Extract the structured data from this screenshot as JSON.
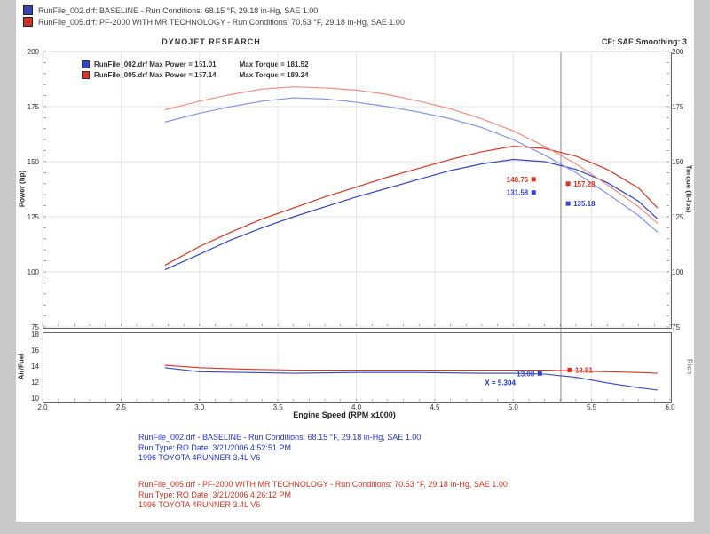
{
  "top_legend": [
    {
      "color": "#3a44b0",
      "label": "RunFile_002.drf: BASELINE  -  Run Conditions: 68.15 °F, 29.18 in-Hg, SAE 1.00"
    },
    {
      "color": "#cc3322",
      "label": "RunFile_005.drf: PF-2000 WITH MR TECHNOLOGY  -  Run Conditions: 70.53 °F, 29.18 in-Hg, SAE 1.00"
    }
  ],
  "chart_header": {
    "brand": "DYNOJET RESEARCH",
    "correction": "CF: SAE   Smoothing: 3"
  },
  "chart_data": {
    "type": "line",
    "title": "DYNOJET RESEARCH",
    "x": {
      "label": "Engine Speed (RPM x1000)",
      "min": 2.0,
      "max": 6.0,
      "ticks": [
        2.0,
        2.5,
        3.0,
        3.5,
        4.0,
        4.5,
        5.0,
        5.5,
        6.0
      ]
    },
    "main_plot": {
      "left_axis": {
        "label": "Power (hp)",
        "min": 75,
        "max": 200,
        "ticks": [
          200,
          175,
          150,
          125,
          100,
          75
        ]
      },
      "right_axis": {
        "label": "Torque (ft-lbs)",
        "min": 75,
        "max": 200,
        "ticks": [
          200,
          175,
          150,
          125,
          100,
          75
        ]
      },
      "grid": true,
      "cursor_x": 5.304,
      "legend": [
        {
          "color": "#3344cc",
          "power_text": "RunFile_002.drf Max Power = 151.01",
          "torque_text": "Max Torque = 181.52"
        },
        {
          "color": "#dd3322",
          "power_text": "RunFile_005.drf Max Power = 157.14",
          "torque_text": "Max Torque = 189.24"
        }
      ],
      "rpm": [
        2.78,
        3.0,
        3.2,
        3.4,
        3.6,
        3.8,
        4.0,
        4.2,
        4.4,
        4.6,
        4.8,
        5.0,
        5.2,
        5.4,
        5.6,
        5.8,
        5.92
      ],
      "series": [
        {
          "name": "baseline-power",
          "color": "#3344cc",
          "axis": "left",
          "values": [
            101,
            108,
            114.5,
            120,
            125,
            129.5,
            134,
            138,
            142,
            146,
            149,
            151,
            150,
            146.5,
            140.5,
            132,
            124
          ]
        },
        {
          "name": "pf2000-power",
          "color": "#dd3322",
          "axis": "left",
          "values": [
            103,
            111.5,
            118,
            124,
            129,
            134,
            138.5,
            143,
            147,
            151,
            154.5,
            157,
            156,
            152.5,
            146.5,
            138,
            129
          ]
        },
        {
          "name": "baseline-torque",
          "color": "#8494e2",
          "axis": "right",
          "values": [
            168,
            172,
            175,
            177.5,
            179,
            178.5,
            177,
            175,
            172.5,
            169.5,
            165.5,
            160,
            153,
            145,
            135.5,
            125.5,
            118
          ]
        },
        {
          "name": "pf2000-torque",
          "color": "#ef8e80",
          "axis": "right",
          "values": [
            173.5,
            177.5,
            180.5,
            183,
            184,
            183.5,
            182.5,
            180.5,
            177.5,
            174,
            169.5,
            164,
            157,
            149,
            139.5,
            129.5,
            122
          ]
        }
      ],
      "markers": [
        {
          "label": "148.76",
          "color": "#dd3322",
          "rpm": 5.13,
          "value": 142,
          "side": "left"
        },
        {
          "label": "131.58",
          "color": "#3344cc",
          "rpm": 5.13,
          "value": 136,
          "side": "left"
        },
        {
          "label": "157.28",
          "color": "#dd3322",
          "rpm": 5.35,
          "value": 140,
          "side": "right"
        },
        {
          "label": "135.18",
          "color": "#3344cc",
          "rpm": 5.35,
          "value": 131,
          "side": "right"
        }
      ]
    },
    "afr_plot": {
      "axis": {
        "label": "Air/Fuel",
        "min": 10,
        "max": 18,
        "ticks": [
          18,
          16,
          14,
          12,
          10
        ]
      },
      "right_label": "Rich",
      "rpm": [
        2.78,
        3.0,
        3.3,
        3.6,
        4.0,
        4.4,
        4.8,
        5.0,
        5.2,
        5.4,
        5.6,
        5.8,
        5.92
      ],
      "series": [
        {
          "name": "baseline-afr",
          "color": "#3344cc",
          "values": [
            13.8,
            13.3,
            13.2,
            13.1,
            13.2,
            13.2,
            13.1,
            13.1,
            13.0,
            12.6,
            11.9,
            11.3,
            11.0
          ]
        },
        {
          "name": "pf2000-afr",
          "color": "#dd3322",
          "values": [
            14.1,
            13.8,
            13.6,
            13.5,
            13.5,
            13.5,
            13.5,
            13.5,
            13.5,
            13.4,
            13.3,
            13.2,
            13.1
          ]
        }
      ],
      "markers": [
        {
          "label": "13.08",
          "color": "#3344cc",
          "rpm": 5.17,
          "value": 13.08,
          "side": "left"
        },
        {
          "label": "13.51",
          "color": "#dd3322",
          "rpm": 5.36,
          "value": 13.51,
          "side": "right"
        }
      ],
      "annotation": {
        "text": "X = 5.304",
        "rpm": 4.82,
        "value": 11.6
      }
    }
  },
  "footer": {
    "blue": {
      "lines": [
        "RunFile_002.drf - BASELINE  -  Run Conditions: 68.15 °F, 29.18 in-Hg, SAE 1.00",
        "Run Type: RO  Date: 3/21/2006 4:52:51 PM",
        "1996 TOYOTA 4RUNNER 3.4L V6"
      ]
    },
    "red": {
      "lines": [
        "RunFile_005.drf - PF-2000 WITH MR TECHNOLOGY  -  Run Conditions: 70.53 °F, 29.18 in-Hg, SAE 1.00",
        "Run Type: RO  Date: 3/21/2006 4:26:12 PM",
        "1996 TOYOTA 4RUNNER 3.4L V6"
      ]
    }
  }
}
